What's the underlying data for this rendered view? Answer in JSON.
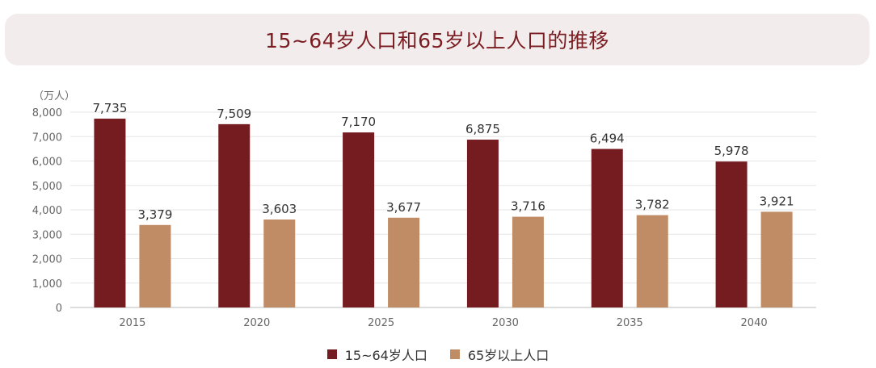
{
  "title": "15~64岁人口和65岁以上人口的推移",
  "chart_data": {
    "type": "bar",
    "unit_label": "（万人）",
    "categories": [
      "2015",
      "2020",
      "2025",
      "2030",
      "2035",
      "2040"
    ],
    "series": [
      {
        "name": "15~64岁人口",
        "values": [
          7735,
          7509,
          7170,
          6875,
          6494,
          5978
        ],
        "labels": [
          "7,735",
          "7,509",
          "7,170",
          "6,875",
          "6,494",
          "5,978"
        ],
        "color": "#751c21"
      },
      {
        "name": "65岁以上人口",
        "values": [
          3379,
          3603,
          3677,
          3716,
          3782,
          3921
        ],
        "labels": [
          "3,379",
          "3,603",
          "3,677",
          "3,716",
          "3,782",
          "3,921"
        ],
        "color": "#c08c66"
      }
    ],
    "ylim": [
      0,
      8000
    ],
    "yticks": [
      "0",
      "1,000",
      "2,000",
      "3,000",
      "4,000",
      "5,000",
      "6,000",
      "7,000",
      "8,000"
    ],
    "grid": true,
    "legend_position": "bottom"
  }
}
